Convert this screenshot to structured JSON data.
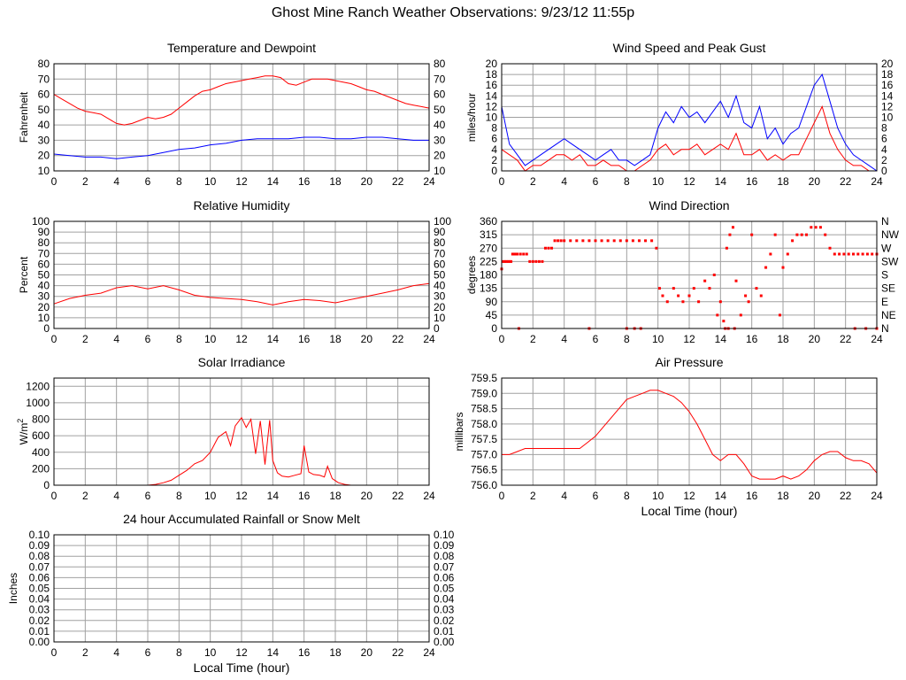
{
  "page": {
    "title": "Ghost Mine Ranch Weather Observations: 9/23/12 11:55p"
  },
  "colors": {
    "red": "#ff0000",
    "blue": "#0000ff",
    "grid": "#a0a0a0",
    "frame": "#000000"
  },
  "chart_data": [
    {
      "id": "temperature",
      "type": "line",
      "title": "Temperature and Dewpoint",
      "ylabel": "Fahrenheit",
      "xlabel": "",
      "xlim": [
        0,
        24
      ],
      "ylim": [
        10,
        80
      ],
      "xticks": [
        0,
        2,
        4,
        6,
        8,
        10,
        12,
        14,
        16,
        18,
        20,
        22,
        24
      ],
      "yticks": [
        10,
        20,
        30,
        40,
        50,
        60,
        70,
        80
      ],
      "right_ticks": true,
      "series": [
        {
          "color": "#ff0000",
          "x": [
            0,
            0.5,
            1,
            1.5,
            2,
            2.5,
            3,
            3.5,
            4,
            4.5,
            5,
            5.5,
            6,
            6.5,
            7,
            7.5,
            8,
            8.5,
            9,
            9.5,
            10,
            10.5,
            11,
            11.5,
            12,
            12.5,
            13,
            13.5,
            14,
            14.5,
            15,
            15.5,
            16,
            16.5,
            17,
            17.5,
            18,
            18.5,
            19,
            19.5,
            20,
            20.5,
            21,
            21.5,
            22,
            22.5,
            23,
            23.5,
            24
          ],
          "y": [
            60,
            57,
            54,
            51,
            49,
            48,
            47,
            44,
            41,
            40,
            41,
            43,
            45,
            44,
            45,
            47,
            51,
            55,
            59,
            62,
            63,
            65,
            67,
            68,
            69,
            70,
            71,
            72,
            72,
            71,
            67,
            66,
            68,
            70,
            70,
            70,
            69,
            68,
            67,
            65,
            63,
            62,
            60,
            58,
            56,
            54,
            53,
            52,
            51
          ]
        },
        {
          "color": "#0000ff",
          "x": [
            0,
            1,
            2,
            3,
            4,
            5,
            6,
            7,
            8,
            9,
            10,
            11,
            12,
            13,
            14,
            15,
            16,
            17,
            18,
            19,
            20,
            21,
            22,
            23,
            24
          ],
          "y": [
            21,
            20,
            19,
            19,
            18,
            19,
            20,
            22,
            24,
            25,
            27,
            28,
            30,
            31,
            31,
            31,
            32,
            32,
            31,
            31,
            32,
            32,
            31,
            30,
            30
          ]
        }
      ]
    },
    {
      "id": "wind_speed",
      "type": "line",
      "title": "Wind Speed and Peak Gust",
      "ylabel": "miles/hour",
      "xlabel": "",
      "xlim": [
        0,
        24
      ],
      "ylim": [
        0,
        20
      ],
      "xticks": [
        0,
        2,
        4,
        6,
        8,
        10,
        12,
        14,
        16,
        18,
        20,
        22,
        24
      ],
      "yticks": [
        0,
        2,
        4,
        6,
        8,
        10,
        12,
        14,
        16,
        18,
        20
      ],
      "right_ticks": true,
      "series": [
        {
          "color": "#0000ff",
          "x": [
            0,
            0.5,
            1,
            1.5,
            2,
            2.5,
            3,
            3.5,
            4,
            4.5,
            5,
            5.5,
            6,
            6.5,
            7,
            7.5,
            8,
            8.5,
            9,
            9.5,
            10,
            10.5,
            11,
            11.5,
            12,
            12.5,
            13,
            13.5,
            14,
            14.5,
            15,
            15.5,
            16,
            16.5,
            17,
            17.5,
            18,
            18.5,
            19,
            19.5,
            20,
            20.5,
            21,
            21.5,
            22,
            22.5,
            23,
            23.5,
            24
          ],
          "y": [
            12,
            5,
            3,
            1,
            2,
            3,
            4,
            5,
            6,
            5,
            4,
            3,
            2,
            3,
            4,
            2,
            2,
            1,
            2,
            3,
            8,
            11,
            9,
            12,
            10,
            11,
            9,
            11,
            13,
            10,
            14,
            9,
            8,
            12,
            6,
            8,
            5,
            7,
            8,
            12,
            16,
            18,
            13,
            8,
            5,
            3,
            2,
            1,
            0
          ]
        },
        {
          "color": "#ff0000",
          "x": [
            0,
            0.5,
            1,
            1.5,
            2,
            2.5,
            3,
            3.5,
            4,
            4.5,
            5,
            5.5,
            6,
            6.5,
            7,
            7.5,
            8,
            8.5,
            9,
            9.5,
            10,
            10.5,
            11,
            11.5,
            12,
            12.5,
            13,
            13.5,
            14,
            14.5,
            15,
            15.5,
            16,
            16.5,
            17,
            17.5,
            18,
            18.5,
            19,
            19.5,
            20,
            20.5,
            21,
            21.5,
            22,
            22.5,
            23,
            23.5,
            24
          ],
          "y": [
            4,
            3,
            2,
            0,
            1,
            1,
            2,
            3,
            3,
            2,
            3,
            1,
            1,
            2,
            1,
            1,
            0,
            0,
            1,
            2,
            4,
            5,
            3,
            4,
            4,
            5,
            3,
            4,
            5,
            4,
            7,
            3,
            3,
            4,
            2,
            3,
            2,
            3,
            3,
            6,
            9,
            12,
            7,
            4,
            2,
            1,
            1,
            0,
            0
          ]
        }
      ]
    },
    {
      "id": "humidity",
      "type": "line",
      "title": "Relative Humidity",
      "ylabel": "Percent",
      "xlabel": "",
      "xlim": [
        0,
        24
      ],
      "ylim": [
        0,
        100
      ],
      "xticks": [
        0,
        2,
        4,
        6,
        8,
        10,
        12,
        14,
        16,
        18,
        20,
        22,
        24
      ],
      "yticks": [
        0,
        10,
        20,
        30,
        40,
        50,
        60,
        70,
        80,
        90,
        100
      ],
      "right_ticks": true,
      "series": [
        {
          "color": "#ff0000",
          "x": [
            0,
            1,
            2,
            3,
            4,
            5,
            6,
            7,
            8,
            9,
            10,
            11,
            12,
            13,
            14,
            15,
            16,
            17,
            18,
            19,
            20,
            21,
            22,
            23,
            24
          ],
          "y": [
            23,
            28,
            31,
            33,
            38,
            40,
            37,
            40,
            36,
            31,
            29,
            28,
            27,
            25,
            22,
            25,
            27,
            26,
            24,
            27,
            30,
            33,
            36,
            40,
            42
          ]
        }
      ]
    },
    {
      "id": "wind_direction",
      "type": "scatter",
      "title": "Wind Direction",
      "ylabel": "degrees",
      "xlabel": "",
      "xlim": [
        0,
        24
      ],
      "ylim": [
        0,
        360
      ],
      "xticks": [
        0,
        2,
        4,
        6,
        8,
        10,
        12,
        14,
        16,
        18,
        20,
        22,
        24
      ],
      "yticks": [
        0,
        45,
        90,
        135,
        180,
        225,
        270,
        315,
        360
      ],
      "right_labels": [
        "N",
        "NE",
        "E",
        "SE",
        "S",
        "SW",
        "W",
        "NW",
        "N"
      ],
      "series": [
        {
          "color": "#ff0000",
          "x": [
            0,
            0.1,
            0.2,
            0.3,
            0.4,
            0.5,
            0.6,
            0.7,
            0.8,
            0.9,
            1.0,
            1.2,
            1.4,
            1.6,
            1.8,
            2.0,
            2.2,
            2.4,
            2.6,
            2.8,
            3.0,
            3.2,
            3.4,
            3.6,
            3.8,
            4.0,
            4.4,
            4.8,
            5.2,
            5.6,
            6.0,
            6.4,
            6.8,
            7.2,
            7.6,
            8.0,
            8.4,
            8.8,
            9.2,
            9.6,
            9.9,
            10.1,
            10.3,
            10.6,
            11.0,
            11.3,
            11.6,
            12.0,
            12.3,
            12.6,
            13.0,
            13.3,
            13.6,
            13.8,
            14.0,
            14.2,
            14.4,
            14.6,
            14.8,
            15.0,
            15.3,
            15.6,
            15.8,
            16.0,
            16.3,
            16.6,
            16.9,
            17.2,
            17.5,
            17.8,
            18.0,
            18.3,
            18.6,
            18.9,
            19.2,
            19.5,
            19.8,
            20.1,
            20.4,
            20.7,
            21.0,
            21.3,
            21.6,
            21.9,
            22.2,
            22.5,
            22.8,
            23.1,
            23.4,
            23.7,
            24.0,
            1.1,
            5.6,
            8.0,
            8.5,
            8.9,
            14.3,
            14.5,
            14.9,
            22.6,
            23.3,
            24.0
          ],
          "y": [
            200,
            225,
            225,
            225,
            225,
            225,
            225,
            250,
            250,
            250,
            250,
            250,
            250,
            250,
            225,
            225,
            225,
            225,
            225,
            270,
            270,
            270,
            295,
            295,
            295,
            295,
            295,
            295,
            295,
            295,
            295,
            295,
            295,
            295,
            295,
            295,
            295,
            295,
            295,
            295,
            270,
            135,
            110,
            90,
            135,
            110,
            90,
            110,
            135,
            90,
            160,
            135,
            180,
            45,
            90,
            25,
            270,
            315,
            340,
            160,
            45,
            110,
            90,
            315,
            135,
            110,
            205,
            250,
            315,
            45,
            205,
            250,
            295,
            315,
            315,
            315,
            340,
            340,
            340,
            315,
            270,
            250,
            250,
            250,
            250,
            250,
            250,
            250,
            250,
            250,
            250,
            0,
            0,
            0,
            0,
            0,
            0,
            0,
            0,
            0,
            0,
            0
          ]
        }
      ]
    },
    {
      "id": "solar",
      "type": "line",
      "title": "Solar Irradiance",
      "ylabel": "W/m",
      "ylabel_sup": "2",
      "xlabel": "",
      "xlim": [
        0,
        24
      ],
      "ylim": [
        0,
        1300
      ],
      "xticks": [
        0,
        2,
        4,
        6,
        8,
        10,
        12,
        14,
        16,
        18,
        20,
        22,
        24
      ],
      "yticks": [
        0,
        200,
        400,
        600,
        800,
        1000,
        1200
      ],
      "right_ticks": false,
      "series": [
        {
          "color": "#ff0000",
          "x": [
            0,
            6.0,
            6.5,
            7.0,
            7.5,
            8.0,
            8.5,
            9.0,
            9.5,
            10.0,
            10.5,
            11.0,
            11.3,
            11.6,
            12.0,
            12.3,
            12.6,
            12.9,
            13.2,
            13.5,
            13.8,
            14.0,
            14.3,
            14.6,
            15.0,
            15.4,
            15.8,
            16.0,
            16.3,
            16.6,
            17.0,
            17.3,
            17.5,
            17.8,
            18.2,
            18.6,
            19.0,
            24
          ],
          "y": [
            0,
            0,
            10,
            30,
            60,
            120,
            180,
            260,
            300,
            400,
            580,
            650,
            480,
            720,
            820,
            700,
            800,
            380,
            780,
            250,
            790,
            300,
            150,
            110,
            100,
            120,
            140,
            480,
            160,
            130,
            120,
            100,
            230,
            80,
            30,
            10,
            0,
            0
          ]
        }
      ]
    },
    {
      "id": "pressure",
      "type": "line",
      "title": "Air Pressure",
      "ylabel": "millibars",
      "xlabel": "Local Time (hour)",
      "xlim": [
        0,
        24
      ],
      "ylim": [
        756.0,
        759.5
      ],
      "xticks": [
        0,
        2,
        4,
        6,
        8,
        10,
        12,
        14,
        16,
        18,
        20,
        22,
        24
      ],
      "yticks": [
        756.0,
        756.5,
        757.0,
        757.5,
        758.0,
        758.5,
        759.0,
        759.5
      ],
      "ytick_labels": [
        "756.0",
        "756.5",
        "757.0",
        "757.5",
        "758.0",
        "758.5",
        "759.0",
        "759.5"
      ],
      "right_ticks": false,
      "series": [
        {
          "color": "#ff0000",
          "x": [
            0,
            0.5,
            1,
            1.5,
            2,
            2.5,
            3,
            3.5,
            4,
            4.5,
            5,
            5.5,
            6,
            6.5,
            7,
            7.5,
            8,
            8.5,
            9,
            9.5,
            10,
            10.5,
            11,
            11.5,
            12,
            12.5,
            13,
            13.5,
            14,
            14.5,
            15,
            15.5,
            16,
            16.5,
            17,
            17.5,
            18,
            18.5,
            19,
            19.5,
            20,
            20.5,
            21,
            21.5,
            22,
            22.5,
            23,
            23.5,
            24
          ],
          "y": [
            757.0,
            757.0,
            757.1,
            757.2,
            757.2,
            757.2,
            757.2,
            757.2,
            757.2,
            757.2,
            757.2,
            757.4,
            757.6,
            757.9,
            758.2,
            758.5,
            758.8,
            758.9,
            759.0,
            759.1,
            759.1,
            759.0,
            758.9,
            758.7,
            758.4,
            758.0,
            757.5,
            757.0,
            756.8,
            757.0,
            757.0,
            756.7,
            756.3,
            756.2,
            756.2,
            756.2,
            756.3,
            756.2,
            756.3,
            756.5,
            756.8,
            757.0,
            757.1,
            757.1,
            756.9,
            756.8,
            756.8,
            756.7,
            756.4
          ]
        }
      ]
    },
    {
      "id": "rainfall",
      "type": "line",
      "title": "24 hour Accumulated Rainfall or Snow Melt",
      "ylabel": "Inches",
      "xlabel": "Local Time (hour)",
      "xlim": [
        0,
        24
      ],
      "ylim": [
        0,
        0.1
      ],
      "xticks": [
        0,
        2,
        4,
        6,
        8,
        10,
        12,
        14,
        16,
        18,
        20,
        22,
        24
      ],
      "yticks": [
        0,
        0.01,
        0.02,
        0.03,
        0.04,
        0.05,
        0.06,
        0.07,
        0.08,
        0.09,
        0.1
      ],
      "ytick_labels": [
        "0.00",
        "0.01",
        "0.02",
        "0.03",
        "0.04",
        "0.05",
        "0.06",
        "0.07",
        "0.08",
        "0.09",
        "0.10"
      ],
      "right_ticks": true,
      "series": [
        {
          "color": "#ff0000",
          "x": [
            0,
            24
          ],
          "y": [
            0,
            0
          ]
        }
      ]
    }
  ]
}
